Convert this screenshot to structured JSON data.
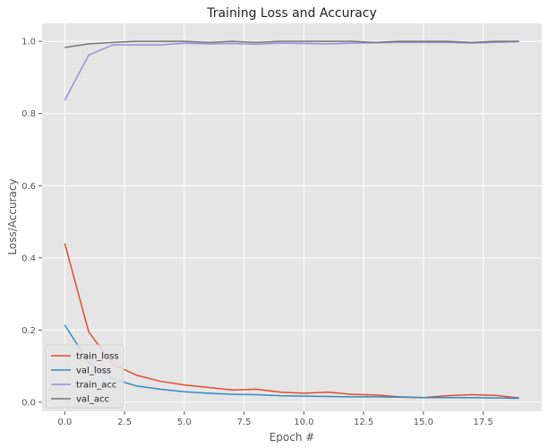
{
  "chart_data": {
    "type": "line",
    "title": "Training Loss and Accuracy",
    "xlabel": "Epoch #",
    "ylabel": "Loss/Accuracy",
    "xlim": [
      -0.95,
      19.95
    ],
    "ylim": [
      -0.025,
      1.05
    ],
    "xticks": [
      0,
      2.5,
      5,
      7.5,
      10,
      12.5,
      15,
      17.5
    ],
    "xtick_labels": [
      "0.0",
      "2.5",
      "5.0",
      "7.5",
      "10.0",
      "12.5",
      "15.0",
      "17.5"
    ],
    "yticks": [
      0,
      0.2,
      0.4,
      0.6,
      0.8,
      1.0
    ],
    "ytick_labels": [
      "0.0",
      "0.2",
      "0.4",
      "0.6",
      "0.8",
      "1.0"
    ],
    "grid": true,
    "legend_position": "lower-left",
    "x": [
      0,
      1,
      2,
      3,
      4,
      5,
      6,
      7,
      8,
      9,
      10,
      11,
      12,
      13,
      14,
      15,
      16,
      17,
      18,
      19
    ],
    "series": [
      {
        "name": "train_loss",
        "color": "#E24A33",
        "values": [
          0.44,
          0.195,
          0.105,
          0.075,
          0.058,
          0.048,
          0.041,
          0.034,
          0.036,
          0.028,
          0.025,
          0.028,
          0.022,
          0.02,
          0.015,
          0.013,
          0.018,
          0.021,
          0.019,
          0.012
        ]
      },
      {
        "name": "val_loss",
        "color": "#348ABD",
        "values": [
          0.214,
          0.11,
          0.065,
          0.045,
          0.036,
          0.029,
          0.025,
          0.022,
          0.021,
          0.018,
          0.017,
          0.016,
          0.015,
          0.015,
          0.014,
          0.013,
          0.013,
          0.013,
          0.012,
          0.011
        ]
      },
      {
        "name": "train_acc",
        "color": "#988ED5",
        "values": [
          0.837,
          0.962,
          0.99,
          0.99,
          0.99,
          0.995,
          0.993,
          0.994,
          0.992,
          0.995,
          0.994,
          0.993,
          0.995,
          0.996,
          0.997,
          0.997,
          0.997,
          0.995,
          0.997,
          0.999
        ]
      },
      {
        "name": "val_acc",
        "color": "#777777",
        "values": [
          0.983,
          0.993,
          0.997,
          1.0,
          1.0,
          1.0,
          0.997,
          1.0,
          0.997,
          1.0,
          1.0,
          1.0,
          1.0,
          0.997,
          1.0,
          1.0,
          1.0,
          0.997,
          1.0,
          1.0
        ]
      }
    ]
  }
}
